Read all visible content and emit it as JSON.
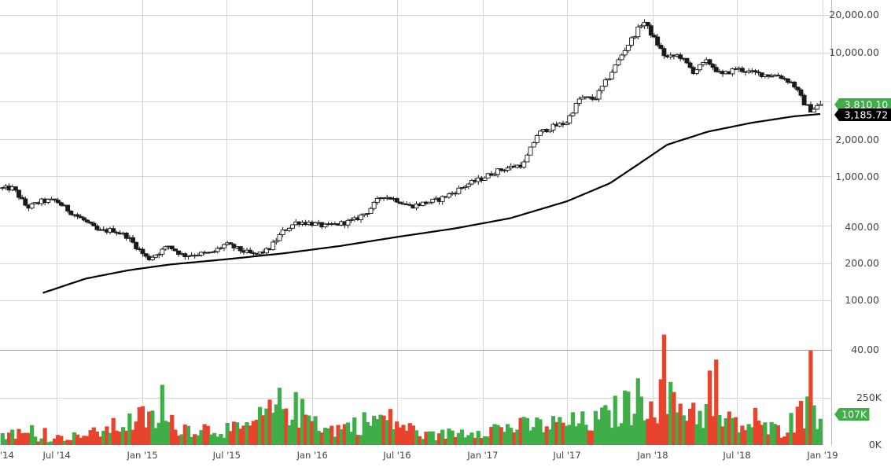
{
  "chart_data": {
    "type": "candlestick",
    "title": "",
    "log_scale": true,
    "grid": true,
    "colors": {
      "up": "#3fae49",
      "down": "#e8432c",
      "ma_line": "#000000",
      "grid": "#d6d6d6",
      "last_price_badge": "#3fae49",
      "ma_badge": "#000000",
      "volume_badge": "#3fae49"
    },
    "price_axis": {
      "ticks": [
        "20,000.00",
        "10,000.00",
        "4,000.00",
        "2,000.00",
        "1,000.00",
        "400.00",
        "200.00",
        "100.00",
        "40.00"
      ],
      "ylim": [
        40,
        22000
      ]
    },
    "volume_axis": {
      "ticks": [
        "250K",
        "0K"
      ]
    },
    "x_axis": {
      "ticks": [
        "'14",
        "Jul '14",
        "Jan '15",
        "Jul '15",
        "Jan '16",
        "Jul '16",
        "Jan '17",
        "Jul '17",
        "Jan '18",
        "Jul '18",
        "Jan '19"
      ]
    },
    "badges": {
      "last_price": "3,810.10",
      "moving_average": "3,185.72",
      "last_volume": "107K"
    },
    "price_anchors": [
      [
        "2014-04-01",
        800
      ],
      [
        "2014-05-01",
        560
      ],
      [
        "2014-06-01",
        630
      ],
      [
        "2014-07-01",
        640
      ],
      [
        "2014-08-01",
        520
      ],
      [
        "2014-09-01",
        440
      ],
      [
        "2014-10-01",
        360
      ],
      [
        "2014-11-01",
        370
      ],
      [
        "2014-12-01",
        330
      ],
      [
        "2015-01-15",
        215
      ],
      [
        "2015-02-01",
        235
      ],
      [
        "2015-03-01",
        275
      ],
      [
        "2015-04-01",
        230
      ],
      [
        "2015-05-01",
        237
      ],
      [
        "2015-06-01",
        240
      ],
      [
        "2015-07-01",
        285
      ],
      [
        "2015-08-01",
        255
      ],
      [
        "2015-09-01",
        232
      ],
      [
        "2015-10-01",
        255
      ],
      [
        "2015-11-01",
        360
      ],
      [
        "2015-12-01",
        430
      ],
      [
        "2016-01-01",
        420
      ],
      [
        "2016-02-01",
        395
      ],
      [
        "2016-03-01",
        415
      ],
      [
        "2016-04-01",
        440
      ],
      [
        "2016-05-01",
        520
      ],
      [
        "2016-06-01",
        700
      ],
      [
        "2016-07-01",
        650
      ],
      [
        "2016-08-01",
        575
      ],
      [
        "2016-09-01",
        610
      ],
      [
        "2016-10-01",
        650
      ],
      [
        "2016-11-01",
        740
      ],
      [
        "2016-12-01",
        860
      ],
      [
        "2017-01-01",
        960
      ],
      [
        "2017-02-01",
        1100
      ],
      [
        "2017-03-01",
        1180
      ],
      [
        "2017-04-01",
        1250
      ],
      [
        "2017-05-01",
        2200
      ],
      [
        "2017-06-01",
        2500
      ],
      [
        "2017-07-01",
        2700
      ],
      [
        "2017-08-01",
        4300
      ],
      [
        "2017-09-01",
        4200
      ],
      [
        "2017-10-01",
        6300
      ],
      [
        "2017-11-01",
        10000
      ],
      [
        "2017-12-15",
        18000
      ],
      [
        "2018-01-01",
        14000
      ],
      [
        "2018-02-01",
        9000
      ],
      [
        "2018-03-01",
        9500
      ],
      [
        "2018-04-01",
        7000
      ],
      [
        "2018-05-01",
        8500
      ],
      [
        "2018-06-01",
        6500
      ],
      [
        "2018-07-01",
        7400
      ],
      [
        "2018-08-01",
        6900
      ],
      [
        "2018-09-01",
        6600
      ],
      [
        "2018-10-01",
        6500
      ],
      [
        "2018-11-01",
        5600
      ],
      [
        "2018-11-25",
        3900
      ],
      [
        "2018-12-10",
        3400
      ],
      [
        "2018-12-28",
        3810
      ]
    ],
    "moving_average_anchors": [
      [
        "2014-06-01",
        115
      ],
      [
        "2014-09-01",
        150
      ],
      [
        "2014-12-01",
        175
      ],
      [
        "2015-03-01",
        195
      ],
      [
        "2015-07-01",
        215
      ],
      [
        "2015-11-01",
        240
      ],
      [
        "2016-03-01",
        275
      ],
      [
        "2016-07-01",
        325
      ],
      [
        "2016-11-01",
        380
      ],
      [
        "2017-03-01",
        460
      ],
      [
        "2017-07-01",
        630
      ],
      [
        "2017-10-01",
        880
      ],
      [
        "2017-12-01",
        1250
      ],
      [
        "2018-02-01",
        1800
      ],
      [
        "2018-05-01",
        2300
      ],
      [
        "2018-08-01",
        2700
      ],
      [
        "2018-11-01",
        3050
      ],
      [
        "2018-12-28",
        3186
      ]
    ],
    "volume_profile": [
      [
        "2014-04-01",
        50
      ],
      [
        "2014-06-01",
        25
      ],
      [
        "2014-09-01",
        40
      ],
      [
        "2015-01-01",
        110
      ],
      [
        "2015-04-01",
        70
      ],
      [
        "2015-08-01",
        60
      ],
      [
        "2015-11-01",
        170
      ],
      [
        "2016-02-01",
        60
      ],
      [
        "2016-06-01",
        110
      ],
      [
        "2016-09-01",
        35
      ],
      [
        "2017-01-01",
        65
      ],
      [
        "2017-05-01",
        80
      ],
      [
        "2017-09-01",
        95
      ],
      [
        "2017-12-15",
        200
      ],
      [
        "2018-03-01",
        160
      ],
      [
        "2018-07-01",
        80
      ],
      [
        "2018-10-01",
        60
      ],
      [
        "2018-12-01",
        155
      ],
      [
        "2018-12-28",
        107
      ]
    ]
  }
}
